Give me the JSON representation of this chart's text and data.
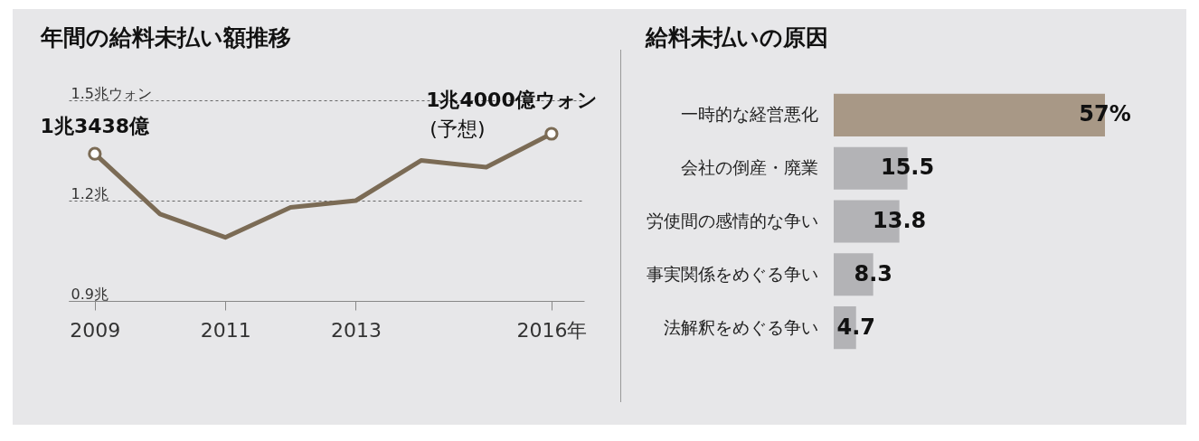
{
  "chart_data": [
    {
      "type": "line",
      "title": "年間の給料未払い額推移",
      "x": [
        2009,
        2010,
        2011,
        2012,
        2013,
        2014,
        2015,
        2016
      ],
      "series": [
        {
          "type": "line",
          "color": "#7b6b55",
          "values": [
            1.34,
            1.16,
            1.09,
            1.18,
            1.2,
            1.32,
            1.3,
            1.4
          ]
        },
        {
          "type": "scatter",
          "color": "#7b6b55",
          "x": [
            2009,
            2016
          ],
          "values": [
            1.34,
            1.4
          ]
        }
      ],
      "xlim": [
        2008.6,
        2016.5
      ],
      "xticks": [
        2009,
        2011,
        2013,
        {
          "value": 2016,
          "label": "2016年"
        }
      ],
      "ylim": [
        0.9,
        1.5
      ],
      "yticks": [
        {
          "value": 0.9,
          "label": "0.9兆"
        },
        {
          "value": 1.2,
          "label": "1.2兆"
        },
        {
          "value": 1.5,
          "label": "1.5兆ウォン"
        }
      ],
      "grid": "y",
      "line_style": "solid",
      "annotations": [
        {
          "text": "1兆3438億",
          "x": 2009,
          "y": 1.34
        },
        {
          "text": "1兆4000億ウォン",
          "x": 2016,
          "y": 1.4
        },
        "(予想)"
      ]
    },
    {
      "type": "bar",
      "title": "給料未払いの原因",
      "orientation": "horizontal",
      "categories": [
        "一時的な経営悪化",
        "会社の倒産・廃業",
        "労使間の感情的な争い",
        "事実関係をめぐる争い",
        "法解釈をめぐる争い"
      ],
      "values": [
        57,
        15.5,
        13.8,
        8.3,
        4.7
      ],
      "colors": [
        "#a89886",
        "#b3b3b6",
        "#b3b3b6",
        "#b3b3b6",
        "#b3b3b6"
      ],
      "value_labels": [
        "57%",
        "15.5",
        "13.8",
        "8.3",
        "4.7"
      ]
    }
  ]
}
